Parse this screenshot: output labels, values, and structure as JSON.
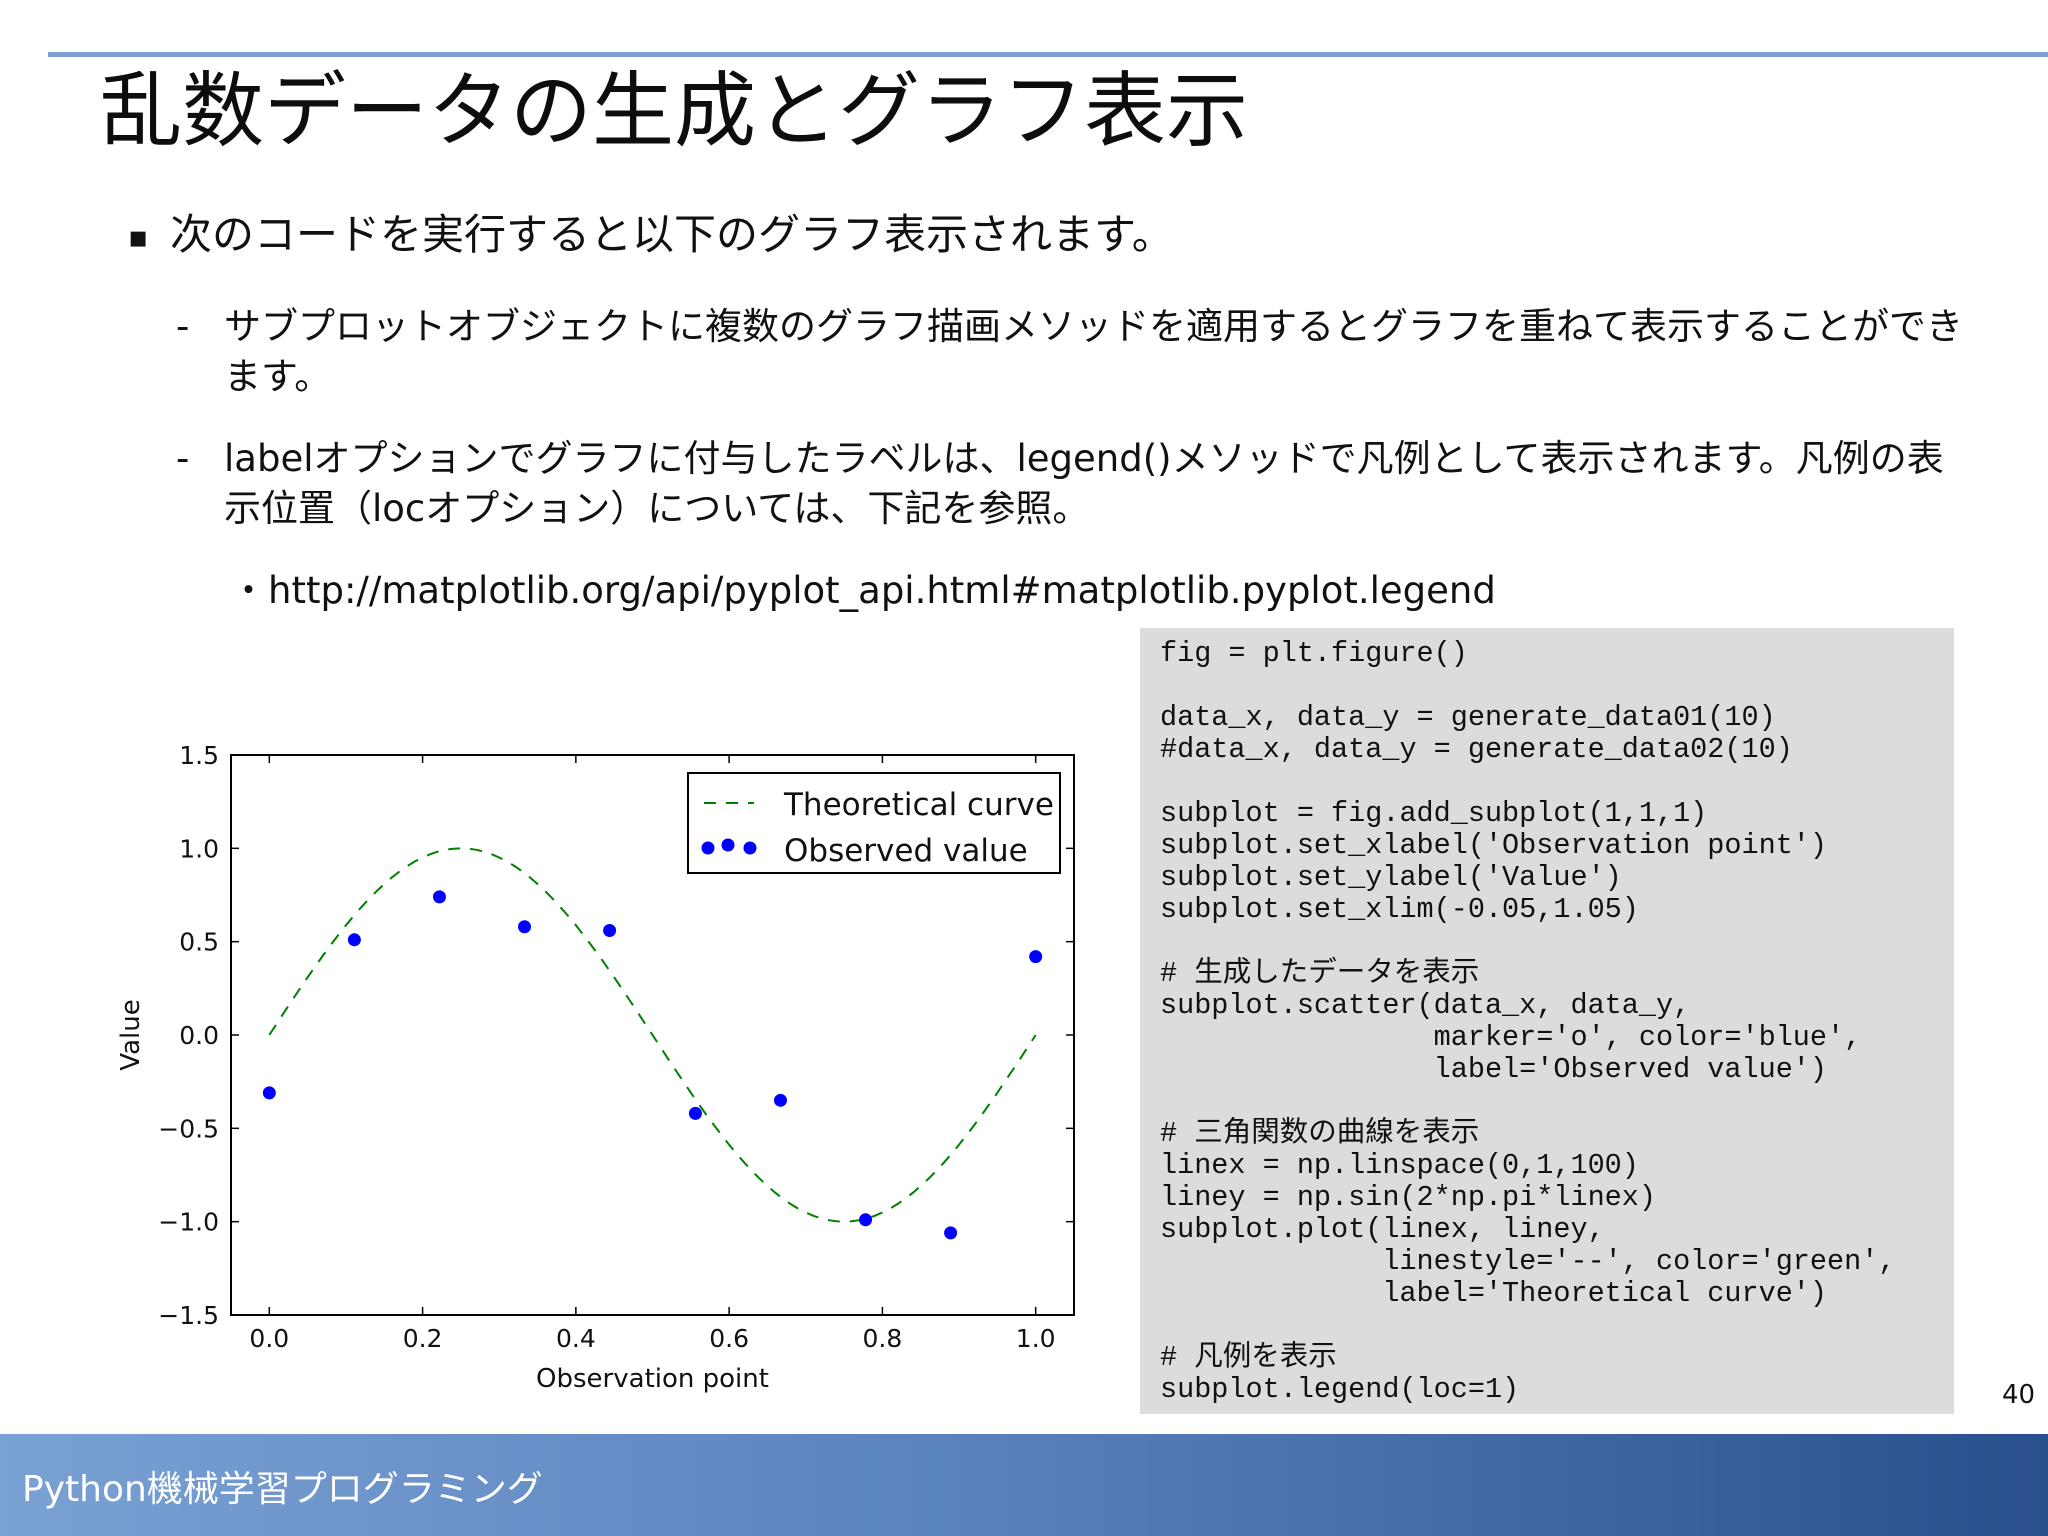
{
  "slide": {
    "title": "乱数データの生成とグラフ表示",
    "bullet_main": "次のコードを実行すると以下のグラフ表示されます。",
    "sub_bullets": [
      {
        "dash": "-",
        "text": "サブプロットオブジェクトに複数のグラフ描画メソッドを適用するとグラフを重ねて表示することができます。"
      },
      {
        "dash": "-",
        "text": "labelオプションでグラフに付与したラベルは、legend()メソッドで凡例として表示されます。凡例の表示位置（locオプション）については、下記を参照。"
      }
    ],
    "link_bullet": "・",
    "link": "http://matplotlib.org/api/pyplot_api.html#matplotlib.pyplot.legend",
    "page_number": "40",
    "footer": "Python機械学習プログラミング"
  },
  "code_lines": [
    "fig = plt.figure()",
    "",
    "data_x, data_y = generate_data01(10)",
    "#data_x, data_y = generate_data02(10)",
    "",
    "subplot = fig.add_subplot(1,1,1)",
    "subplot.set_xlabel('Observation point')",
    "subplot.set_ylabel('Value')",
    "subplot.set_xlim(-0.05,1.05)",
    "",
    "# 生成したデータを表示",
    "subplot.scatter(data_x, data_y,",
    "                marker='o', color='blue',",
    "                label='Observed value')",
    "",
    "# 三角関数の曲線を表示",
    "linex = np.linspace(0,1,100)",
    "liney = np.sin(2*np.pi*linex)",
    "subplot.plot(linex, liney,",
    "             linestyle='--', color='green',",
    "             label='Theoretical curve')",
    "",
    "# 凡例を表示",
    "subplot.legend(loc=1)"
  ],
  "chart_data": {
    "type": "scatter",
    "xlabel": "Observation point",
    "ylabel": "Value",
    "xlim": [
      -0.05,
      1.05
    ],
    "ylim": [
      -1.5,
      1.5
    ],
    "x_ticks": [
      "0.0",
      "0.2",
      "0.4",
      "0.6",
      "0.8",
      "1.0"
    ],
    "x_tick_values": [
      0.0,
      0.2,
      0.4,
      0.6,
      0.8,
      1.0
    ],
    "y_ticks": [
      "1.5",
      "1.0",
      "0.5",
      "0.0",
      "−0.5",
      "−1.0",
      "−1.5"
    ],
    "y_tick_values": [
      1.5,
      1.0,
      0.5,
      0.0,
      -0.5,
      -1.0,
      -1.5
    ],
    "legend_position": "top-right",
    "series": [
      {
        "name": "Theoretical curve",
        "kind": "line",
        "color": "#008000",
        "linestyle": "dashed",
        "function": "sin(2*pi*x)",
        "x_range": [
          0,
          1
        ]
      },
      {
        "name": "Observed value",
        "kind": "scatter",
        "color": "#0000ff",
        "x": [
          0.0,
          0.111,
          0.222,
          0.333,
          0.444,
          0.556,
          0.667,
          0.778,
          0.889,
          1.0
        ],
        "y": [
          -0.31,
          0.51,
          0.74,
          0.58,
          0.56,
          -0.42,
          -0.35,
          -0.99,
          -1.06,
          0.42
        ]
      }
    ]
  }
}
